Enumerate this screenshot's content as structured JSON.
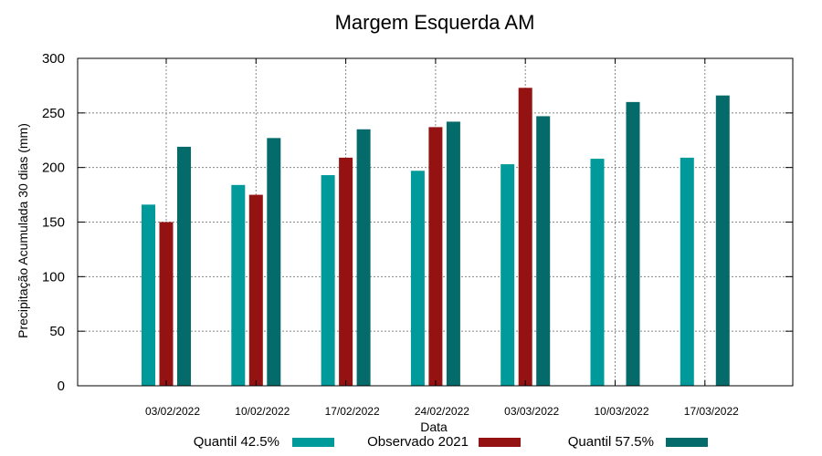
{
  "chart_data": {
    "type": "bar",
    "title": "Margem Esquerda AM",
    "xlabel": "Data",
    "ylabel": "Precipitação Acumulada 30 dias (mm)",
    "ylim": [
      0,
      300
    ],
    "yticks": [
      0,
      50,
      100,
      150,
      200,
      250,
      300
    ],
    "grid": true,
    "legend_position": "bottom",
    "categories": [
      "03/02/2022",
      "10/02/2022",
      "17/02/2022",
      "24/02/2022",
      "03/03/2022",
      "10/03/2022",
      "17/03/2022"
    ],
    "series": [
      {
        "name": "Quantil 42.5%",
        "color": "#009a9a",
        "values": [
          166,
          184,
          193,
          197,
          203,
          208,
          209
        ]
      },
      {
        "name": "Observado 2021",
        "color": "#941212",
        "values": [
          150,
          175,
          209,
          237,
          273,
          null,
          null
        ]
      },
      {
        "name": "Quantil 57.5%",
        "color": "#046a6a",
        "values": [
          219,
          227,
          235,
          242,
          247,
          260,
          266
        ]
      }
    ]
  }
}
